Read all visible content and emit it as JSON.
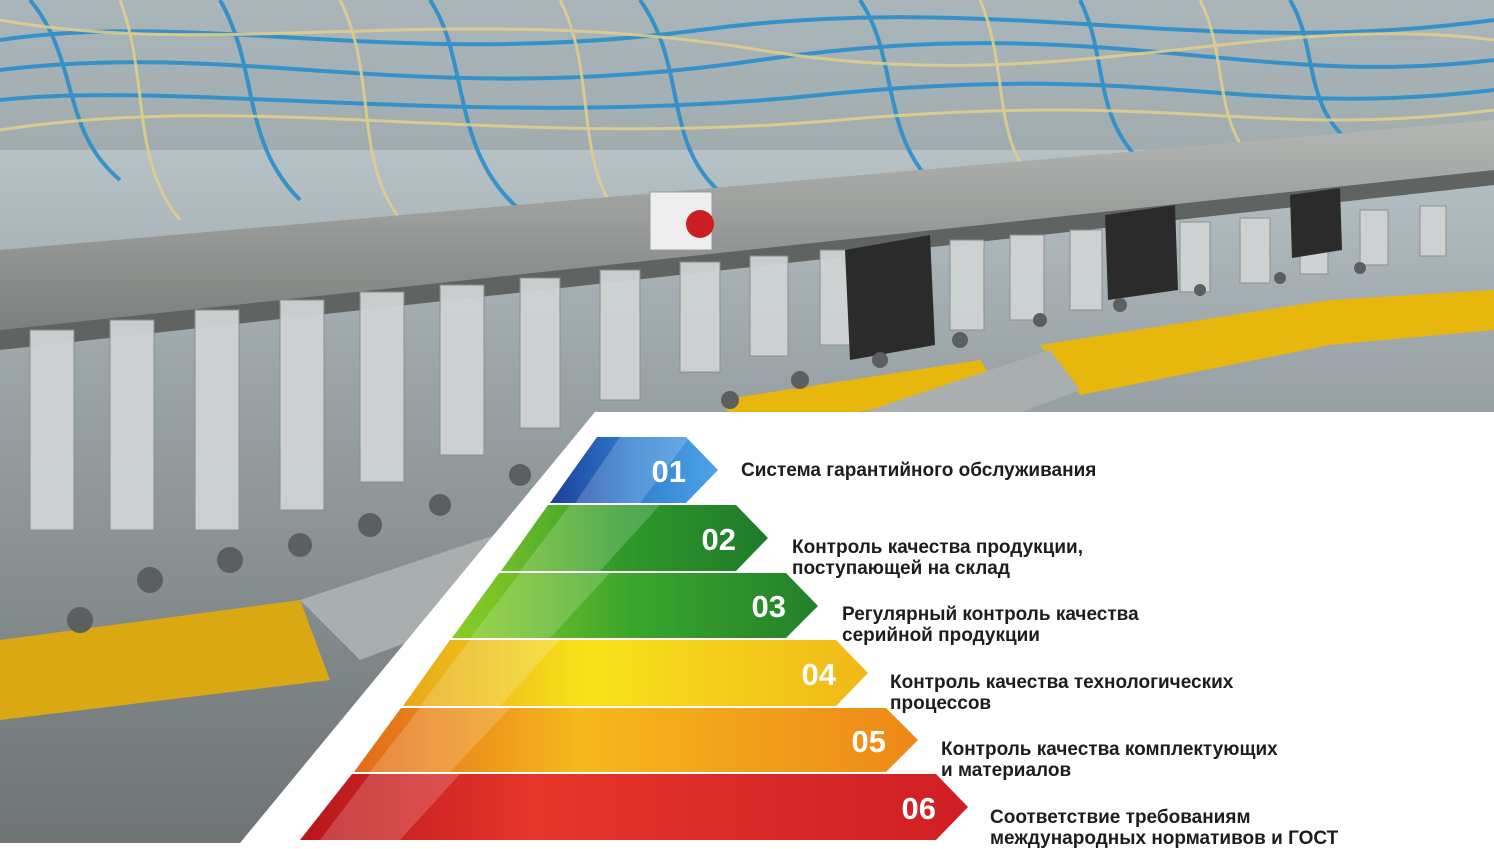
{
  "background": {
    "scene": "factory-machinery-photo"
  },
  "colors": {
    "blue": "#2f6fc7",
    "green": "#2e8f2a",
    "yellow": "#f2c213",
    "orange": "#ee8a18",
    "red": "#d4232a"
  },
  "items": [
    {
      "num": "01",
      "label": "Система гарантийного обслуживания"
    },
    {
      "num": "02",
      "label": "Контроль качества продукции,\nпоступающей на склад"
    },
    {
      "num": "03",
      "label": "Регулярный контроль качества\nсерийной продукции"
    },
    {
      "num": "04",
      "label": "Контроль качества технологических\nпроцессов"
    },
    {
      "num": "05",
      "label": "Контроль качества комплектующих\nи материалов"
    },
    {
      "num": "06",
      "label": "Соответствие требованиям\nмеждународных нормативов и ГОСТ"
    }
  ]
}
